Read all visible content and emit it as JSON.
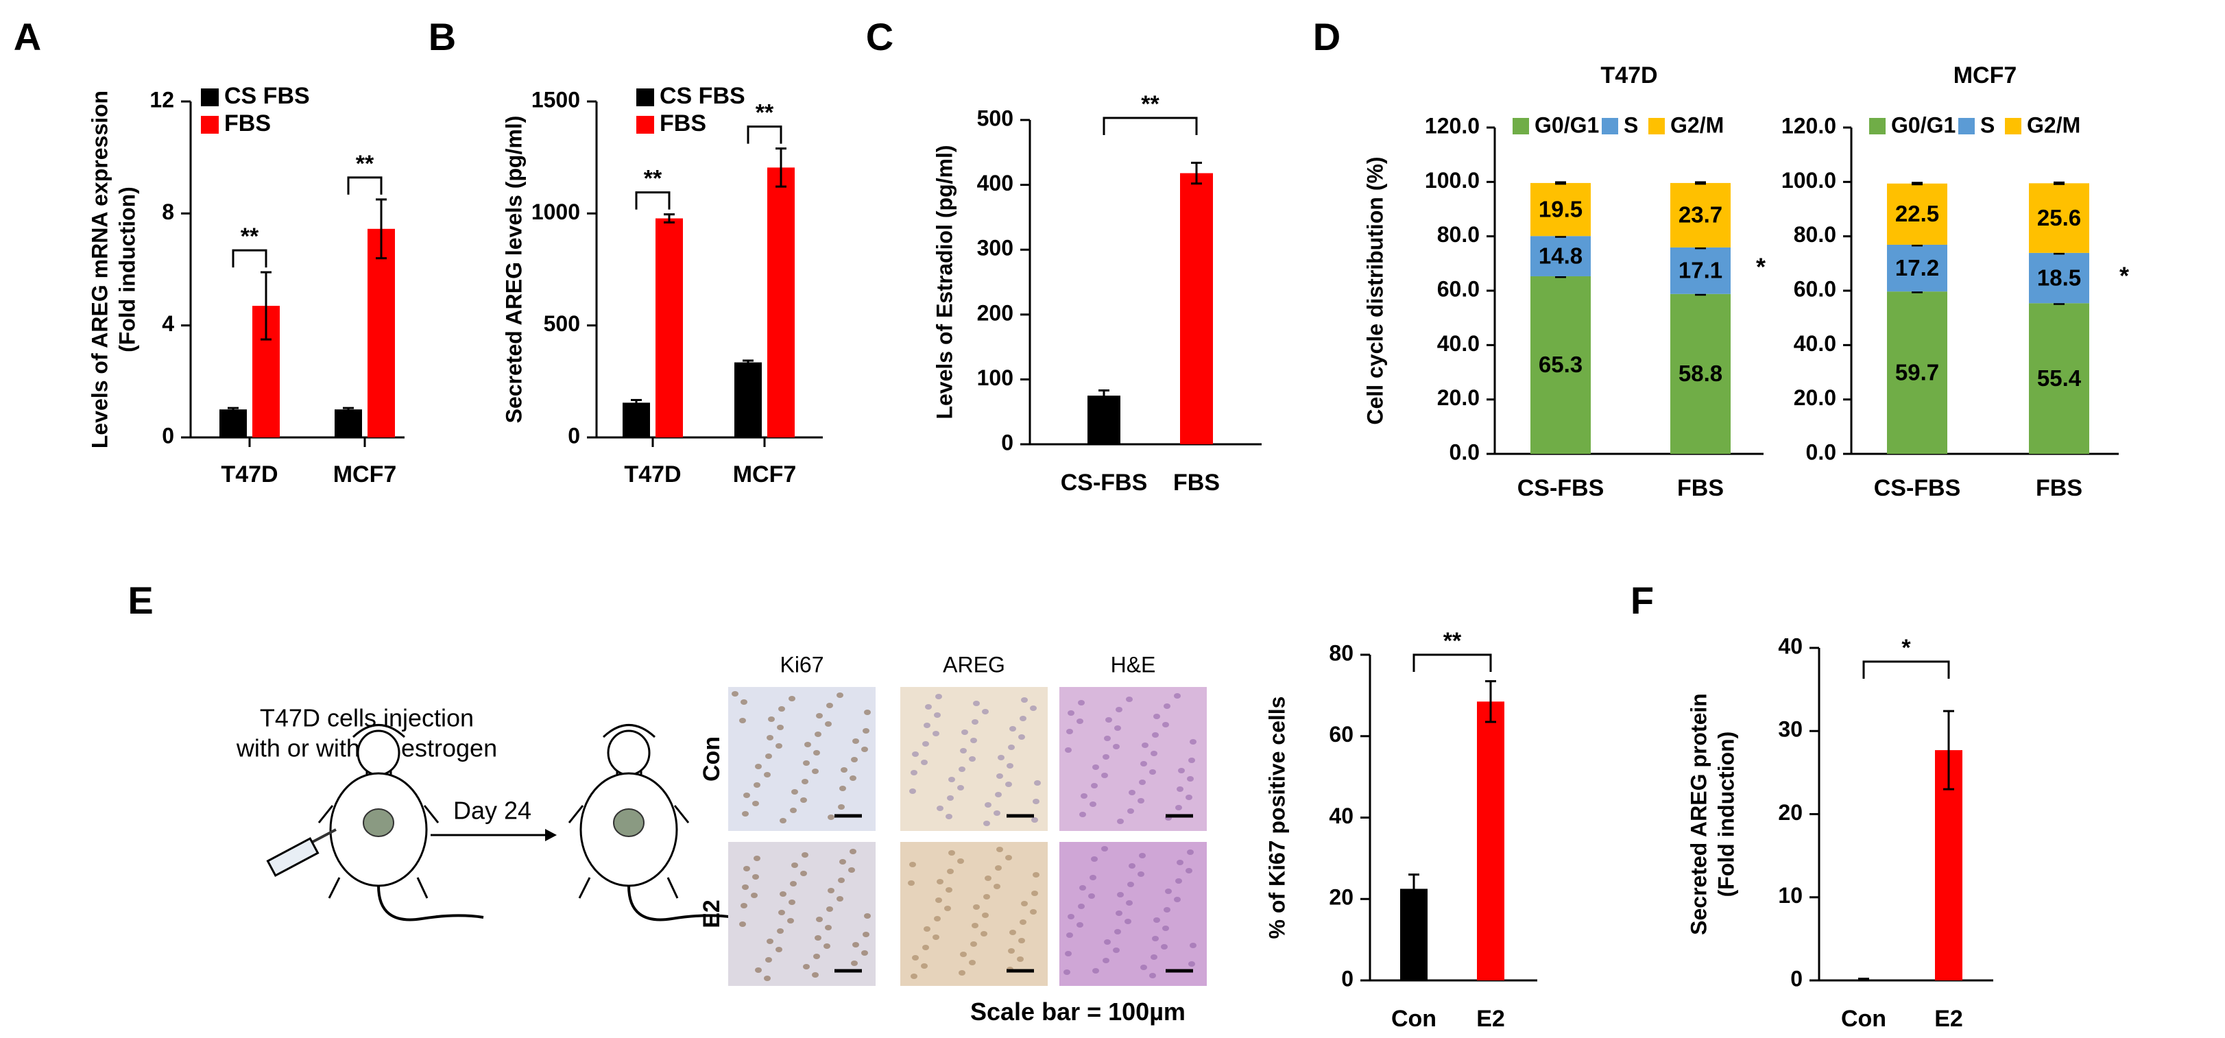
{
  "panel_letters": [
    "A",
    "B",
    "C",
    "D",
    "E",
    "F"
  ],
  "colors": {
    "black": "#000000",
    "red": "#ff0000",
    "g0g1": "#70ad47",
    "s": "#5b9bd5",
    "g2m": "#ffc000"
  },
  "significance": {
    "double": "**",
    "single": "*"
  },
  "schematic": {
    "line1": "T47D cells injection",
    "line2": "with or without estrogen",
    "arrow_label": "Day 24"
  },
  "histology": {
    "columns": [
      "Ki67",
      "AREG",
      "H&E"
    ],
    "rows": [
      "Con",
      "E2"
    ],
    "scale_text": "Scale bar = 100µm"
  },
  "chart_data": [
    {
      "id": "A",
      "type": "bar",
      "categories": [
        "T47D",
        "MCF7"
      ],
      "series": [
        {
          "name": "CS FBS",
          "values": [
            1.0,
            1.0
          ],
          "errors": [
            0.05,
            0.05
          ]
        },
        {
          "name": "FBS",
          "values": [
            4.7,
            7.45
          ],
          "errors": [
            1.2,
            1.05
          ]
        }
      ],
      "ylabel_lines": [
        "Levels of AREG mRNA expression",
        "(Fold induction)"
      ],
      "ylim": [
        0,
        12
      ],
      "yticks": [
        "0",
        "4",
        "8",
        "12"
      ],
      "ytick_values": [
        0,
        4,
        8,
        12
      ],
      "legend": "top-left",
      "significance": [
        "**",
        "**"
      ]
    },
    {
      "id": "B",
      "type": "bar",
      "categories": [
        "T47D",
        "MCF7"
      ],
      "series": [
        {
          "name": "CS FBS",
          "values": [
            155,
            335
          ],
          "errors": [
            12,
            8
          ]
        },
        {
          "name": "FBS",
          "values": [
            978,
            1205
          ],
          "errors": [
            18,
            85
          ]
        }
      ],
      "ylabel_lines": [
        "Secreted AREG levels (pg/ml)"
      ],
      "ylim": [
        0,
        1500
      ],
      "yticks": [
        "0",
        "500",
        "1000",
        "1500"
      ],
      "ytick_values": [
        0,
        500,
        1000,
        1500
      ],
      "legend": "top-left",
      "significance": [
        "**",
        "**"
      ]
    },
    {
      "id": "C",
      "type": "bar",
      "categories": [
        "CS-FBS",
        "FBS"
      ],
      "values": [
        75,
        418
      ],
      "errors": [
        8,
        16
      ],
      "colors": [
        "#000000",
        "#ff0000"
      ],
      "ylabel_lines": [
        "Levels of Estradiol (pg/ml)"
      ],
      "ylim": [
        0,
        500
      ],
      "yticks": [
        "0",
        "100",
        "200",
        "300",
        "400",
        "500"
      ],
      "ytick_values": [
        0,
        100,
        200,
        300,
        400,
        500
      ],
      "significance": [
        "**"
      ]
    },
    {
      "id": "D1",
      "type": "stacked-bar",
      "title": "T47D",
      "categories": [
        "CS-FBS",
        "FBS"
      ],
      "series": [
        {
          "name": "G0/G1",
          "values": [
            65.3,
            58.8
          ],
          "labels": [
            "65.3",
            "58.8"
          ]
        },
        {
          "name": "S",
          "values": [
            14.8,
            17.1
          ],
          "labels": [
            "14.8",
            "17.1"
          ]
        },
        {
          "name": "G2/M",
          "values": [
            19.5,
            23.7
          ],
          "labels": [
            "19.5",
            "23.7"
          ]
        }
      ],
      "ylabel_lines": [
        "Cell cycle distribution (%)"
      ],
      "ylim": [
        0,
        120
      ],
      "yticks": [
        "0.0",
        "20.0",
        "40.0",
        "60.0",
        "80.0",
        "100.0",
        "120.0"
      ],
      "ytick_values": [
        0,
        20,
        40,
        60,
        80,
        100,
        120
      ],
      "legend": "top",
      "star": "*"
    },
    {
      "id": "D2",
      "type": "stacked-bar",
      "title": "MCF7",
      "categories": [
        "CS-FBS",
        "FBS"
      ],
      "series": [
        {
          "name": "G0/G1",
          "values": [
            59.7,
            55.4
          ],
          "labels": [
            "59.7",
            "55.4"
          ]
        },
        {
          "name": "S",
          "values": [
            17.2,
            18.5
          ],
          "labels": [
            "17.2",
            "18.5"
          ]
        },
        {
          "name": "G2/M",
          "values": [
            22.5,
            25.6
          ],
          "labels": [
            "22.5",
            "25.6"
          ]
        }
      ],
      "ylim": [
        0,
        120
      ],
      "yticks": [
        "0.0",
        "20.0",
        "40.0",
        "60.0",
        "80.0",
        "100.0",
        "120.0"
      ],
      "ytick_values": [
        0,
        20,
        40,
        60,
        80,
        100,
        120
      ],
      "legend": "top",
      "star": "*"
    },
    {
      "id": "E",
      "type": "bar",
      "categories": [
        "Con",
        "E2"
      ],
      "values": [
        22.5,
        68.5
      ],
      "errors": [
        3.5,
        5
      ],
      "colors": [
        "#000000",
        "#ff0000"
      ],
      "ylabel_lines": [
        "% of Ki67 positive cells"
      ],
      "ylim": [
        0,
        80
      ],
      "yticks": [
        "0",
        "20",
        "40",
        "60",
        "80"
      ],
      "ytick_values": [
        0,
        20,
        40,
        60,
        80
      ],
      "significance": [
        "**"
      ]
    },
    {
      "id": "F",
      "type": "bar",
      "categories": [
        "Con",
        "E2"
      ],
      "values": [
        0.1,
        27.7
      ],
      "errors": [
        0.1,
        4.7
      ],
      "colors": [
        "#000000",
        "#ff0000"
      ],
      "ylabel_lines": [
        "Secreted AREG protein",
        "(Fold induction)"
      ],
      "ylim": [
        0,
        40
      ],
      "yticks": [
        "0",
        "10",
        "20",
        "30",
        "40"
      ],
      "ytick_values": [
        0,
        10,
        20,
        30,
        40
      ],
      "significance": [
        "*"
      ]
    }
  ]
}
